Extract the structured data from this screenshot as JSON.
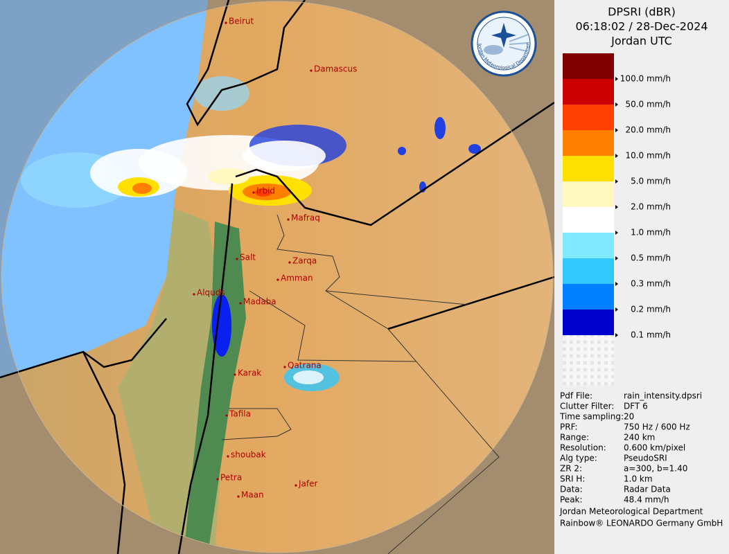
{
  "header": {
    "title": "DPSRI (dBR)",
    "time": "06:18:02 / 28-Dec-2024",
    "zone": "Jordan UTC",
    "logo_text": "Jordan Meteorological Department"
  },
  "legend": [
    {
      "label": "100.0 mm/h",
      "color": "#800000"
    },
    {
      "label": "50.0 mm/h",
      "color": "#cc0000"
    },
    {
      "label": "20.0 mm/h",
      "color": "#ff4000"
    },
    {
      "label": "10.0 mm/h",
      "color": "#ff8000"
    },
    {
      "label": "5.0 mm/h",
      "color": "#ffe000"
    },
    {
      "label": "2.0 mm/h",
      "color": "#fff8c0"
    },
    {
      "label": "1.0 mm/h",
      "color": "#ffffff"
    },
    {
      "label": "0.5 mm/h",
      "color": "#80e8ff"
    },
    {
      "label": "0.3 mm/h",
      "color": "#30c8ff"
    },
    {
      "label": "0.2 mm/h",
      "color": "#0080ff"
    },
    {
      "label": "0.1 mm/h",
      "color": "#0000cc"
    }
  ],
  "info": [
    [
      "Pdf File:",
      "rain_intensity.dpsri"
    ],
    [
      "Clutter Filter:",
      "DFT 6"
    ],
    [
      "Time sampling:",
      "20"
    ],
    [
      "PRF:",
      "750 Hz / 600 Hz"
    ],
    [
      "Range:",
      "240 km"
    ],
    [
      "Resolution:",
      "0.600 km/pixel"
    ],
    [
      "Alg type:",
      "PseudoSRI"
    ],
    [
      "ZR 2:",
      "a=300, b=1.40"
    ],
    [
      "SRI H:",
      "1.0 km"
    ],
    [
      "Data:",
      "Radar Data"
    ],
    [
      "Peak:",
      "48.4 mm/h"
    ]
  ],
  "footer": [
    "Jordan Meteorological Department",
    "Rainbow® LEONARDO Germany GmbH"
  ],
  "cities": [
    "Beirut",
    "Damascus",
    "Irbid",
    "Mafraq",
    "Salt",
    "Zarqa",
    "Amman",
    "Alquds",
    "Madaba",
    "Karak",
    "Qatrana",
    "Tafila",
    "shoubak",
    "Petra",
    "Jafer",
    "Maan"
  ]
}
